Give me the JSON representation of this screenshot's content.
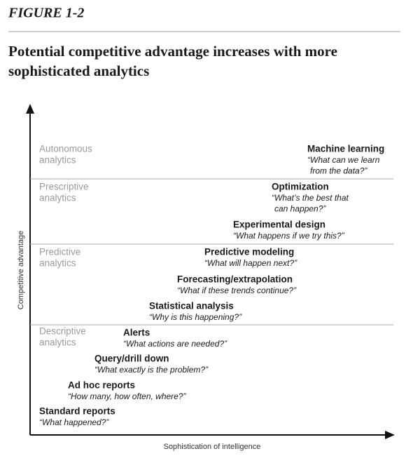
{
  "figure_label": "FIGURE 1-2",
  "title": [
    "Potential competitive advantage increases with more",
    "sophisticated analytics"
  ],
  "y_axis_label": "Competitive advantage",
  "x_axis_label": "Sophistication of intelligence",
  "bands": [
    [
      "Autonomous",
      "analytics"
    ],
    [
      "Prescriptive",
      "analytics"
    ],
    [
      "Predictive",
      "analytics"
    ],
    [
      "Descriptive",
      "analytics"
    ]
  ],
  "items": [
    {
      "title": "Machine learning",
      "quote": [
        "“What can we learn",
        "from the data?”"
      ]
    },
    {
      "title": "Optimization",
      "quote": [
        "“What’s the best that",
        "can happen?”"
      ]
    },
    {
      "title": "Experimental design",
      "quote": [
        "“What happens if we try this?”"
      ]
    },
    {
      "title": "Predictive modeling",
      "quote": [
        "“What will happen next?”"
      ]
    },
    {
      "title": "Forecasting/extrapolation",
      "quote": [
        "“What if these trends continue?”"
      ]
    },
    {
      "title": "Statistical analysis",
      "quote": [
        "“Why is this happening?”"
      ]
    },
    {
      "title": "Alerts",
      "quote": [
        "“What actions are needed?”"
      ]
    },
    {
      "title": "Query/drill down",
      "quote": [
        "“What exactly is the problem?”"
      ]
    },
    {
      "title": "Ad hoc reports",
      "quote": [
        "“How many, how often, where?”"
      ]
    },
    {
      "title": "Standard reports",
      "quote": [
        "“What happened?”"
      ]
    }
  ]
}
